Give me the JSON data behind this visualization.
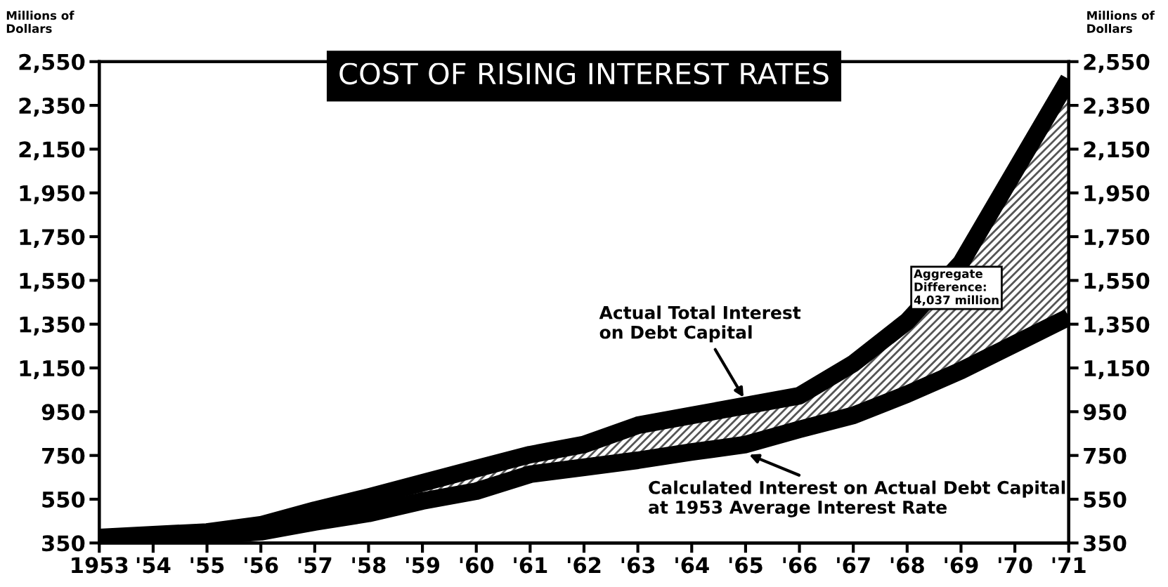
{
  "chart_data": {
    "type": "line",
    "title": "COST OF RISING INTEREST RATES",
    "ylabel": "Millions of Dollars",
    "y2label": "Millions of Dollars",
    "categories": [
      "1953",
      "'54",
      "'55",
      "'56",
      "'57",
      "'58",
      "'59",
      "'60",
      "'61",
      "'62",
      "'63",
      "'64",
      "'65",
      "'66",
      "'67",
      "'68",
      "'69",
      "'70",
      "'71"
    ],
    "series": [
      {
        "color": "#000000",
        "values": [
          375,
          388,
          400,
          433,
          500,
          560,
          625,
          690,
          754,
          800,
          888,
          933,
          978,
          1023,
          1170,
          1363,
          1630,
          2050,
          2470
        ],
        "lower": [
          360,
          363,
          382,
          401,
          446,
          485,
          542,
          587,
          664,
          696,
          728,
          766,
          800,
          869,
          933,
          1030,
          1138,
          1260,
          1382
        ],
        "upper": [
          375,
          388,
          400,
          433,
          500,
          560,
          625,
          690,
          754,
          800,
          888,
          933,
          978,
          1023,
          1170,
          1363,
          1630,
          2050,
          2470
        ]
      },
      {
        "color": "#000000",
        "values": [
          360,
          363,
          382,
          401,
          446,
          485,
          542,
          587,
          664,
          696,
          728,
          766,
          800,
          869,
          933,
          1030,
          1138,
          1260,
          1382
        ]
      }
    ],
    "ylim": [
      350,
      2550
    ],
    "yticks": [
      {
        "value": 350,
        "label": "350"
      },
      {
        "value": 550,
        "label": "550"
      },
      {
        "value": 750,
        "label": "750"
      },
      {
        "value": 950,
        "label": "950"
      },
      {
        "value": 1150,
        "label": "1,150"
      },
      {
        "value": 1350,
        "label": "1,350"
      },
      {
        "value": 1550,
        "label": "1,550"
      },
      {
        "value": 1750,
        "label": "1,750"
      },
      {
        "value": 1950,
        "label": "1,950"
      },
      {
        "value": 2150,
        "label": "2,150"
      },
      {
        "value": 2350,
        "label": "2,350"
      },
      {
        "value": 2550,
        "label": "2,550"
      }
    ],
    "y2lim": [
      350,
      2550
    ],
    "y2ticks": [
      {
        "value": 350,
        "label": "350"
      },
      {
        "value": 550,
        "label": "550"
      },
      {
        "value": 750,
        "label": "750"
      },
      {
        "value": 950,
        "label": "950"
      },
      {
        "value": 1150,
        "label": "1,150"
      },
      {
        "value": 1350,
        "label": "1,350"
      },
      {
        "value": 1550,
        "label": "1,550"
      },
      {
        "value": 1750,
        "label": "1,750"
      },
      {
        "value": 1950,
        "label": "1,950"
      },
      {
        "value": 2150,
        "label": "2,150"
      },
      {
        "value": 2350,
        "label": "2,350"
      },
      {
        "value": 2550,
        "label": "2,550"
      }
    ],
    "annotations": [
      {
        "text": "Actual Total Interest\non Debt Capital",
        "x": "'65",
        "y": 1000
      },
      {
        "text": "Calculated Interest on Actual Debt Capital\nat 1953 Average Interest Rate",
        "x": "'65",
        "y": 760
      },
      "Aggregate\nDifference:\n4,037 million"
    ],
    "grid": false,
    "marker": "none",
    "line_style": "solid"
  }
}
